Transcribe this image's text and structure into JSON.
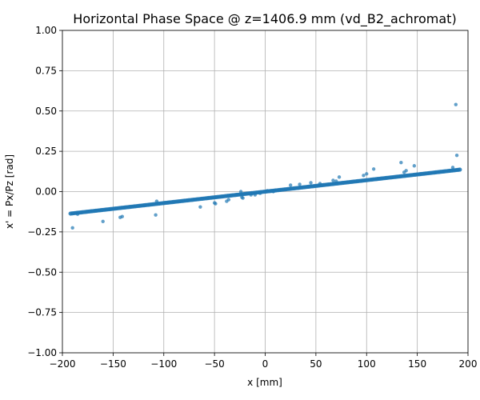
{
  "chart_data": {
    "type": "scatter",
    "title": "Horizontal Phase Space @ z=1406.9 mm (vd_B2_achromat)",
    "xlabel": "x [mm]",
    "ylabel": "x' = Px/Pz [rad]",
    "xlim": [
      -200,
      200
    ],
    "ylim": [
      -1.0,
      1.0
    ],
    "xticks": [
      -200,
      -150,
      -100,
      -50,
      0,
      50,
      100,
      150,
      200
    ],
    "yticks": [
      -1.0,
      -0.75,
      -0.5,
      -0.25,
      0.0,
      0.25,
      0.5,
      0.75,
      1.0
    ],
    "xtick_labels": [
      "−200",
      "−150",
      "−100",
      "−50",
      "0",
      "50",
      "100",
      "150",
      "200"
    ],
    "ytick_labels": [
      "−1.00",
      "−0.75",
      "−0.50",
      "−0.25",
      "0.00",
      "0.25",
      "0.50",
      "0.75",
      "1.00"
    ],
    "grid": true,
    "marker_color": "#1f77b4",
    "main_band": {
      "x_range": [
        -192,
        192
      ],
      "slope": 0.00071,
      "intercept": 0.0
    },
    "outliers": [
      {
        "x": -190,
        "y": -0.225
      },
      {
        "x": -185,
        "y": -0.14
      },
      {
        "x": -160,
        "y": -0.185
      },
      {
        "x": -143,
        "y": -0.16
      },
      {
        "x": -141,
        "y": -0.155
      },
      {
        "x": -108,
        "y": -0.145
      },
      {
        "x": -107,
        "y": -0.06
      },
      {
        "x": -64,
        "y": -0.095
      },
      {
        "x": -50,
        "y": -0.07
      },
      {
        "x": -49,
        "y": -0.075
      },
      {
        "x": -38,
        "y": -0.06
      },
      {
        "x": -36,
        "y": -0.05
      },
      {
        "x": -24,
        "y": 0.0
      },
      {
        "x": -23,
        "y": -0.035
      },
      {
        "x": -22,
        "y": -0.04
      },
      {
        "x": -14,
        "y": -0.02
      },
      {
        "x": -10,
        "y": -0.02
      },
      {
        "x": -5,
        "y": -0.01
      },
      {
        "x": 2,
        "y": 0.005
      },
      {
        "x": 8,
        "y": 0.0
      },
      {
        "x": 25,
        "y": 0.04
      },
      {
        "x": 34,
        "y": 0.045
      },
      {
        "x": 45,
        "y": 0.055
      },
      {
        "x": 54,
        "y": 0.05
      },
      {
        "x": 67,
        "y": 0.07
      },
      {
        "x": 70,
        "y": 0.065
      },
      {
        "x": 73,
        "y": 0.09
      },
      {
        "x": 97,
        "y": 0.1
      },
      {
        "x": 100,
        "y": 0.11
      },
      {
        "x": 107,
        "y": 0.14
      },
      {
        "x": 134,
        "y": 0.18
      },
      {
        "x": 137,
        "y": 0.12
      },
      {
        "x": 139,
        "y": 0.13
      },
      {
        "x": 147,
        "y": 0.16
      },
      {
        "x": 185,
        "y": 0.15
      },
      {
        "x": 188,
        "y": 0.54
      },
      {
        "x": 189,
        "y": 0.225
      }
    ]
  }
}
